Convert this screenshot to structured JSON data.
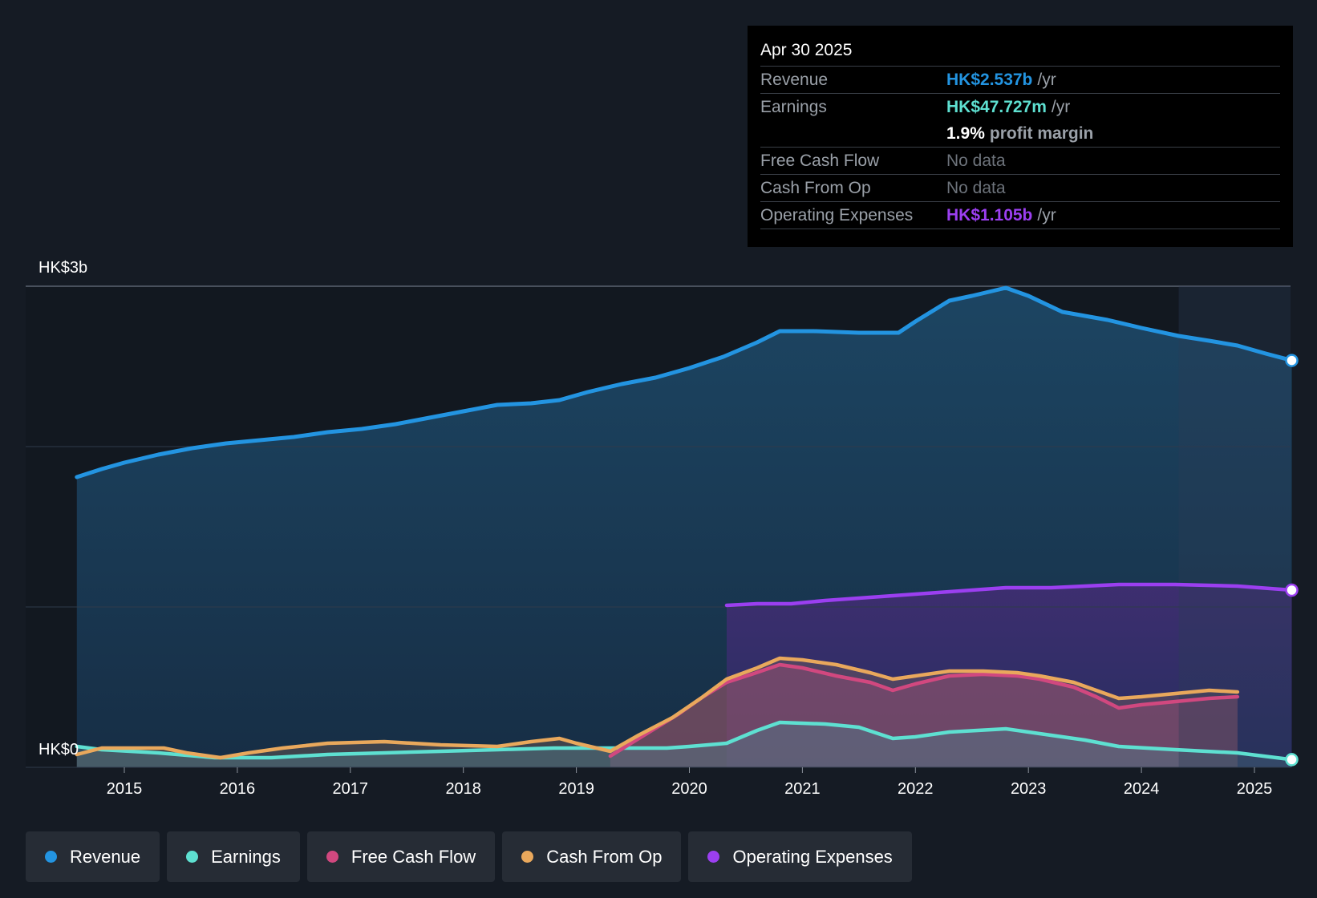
{
  "colors": {
    "revenue": "#2394e1",
    "earnings": "#5ee0d1",
    "free_cash_flow": "#d1487f",
    "cash_from_op": "#e9a85c",
    "operating_expenses": "#9b3ff0",
    "background": "#151b24"
  },
  "tooltip": {
    "date": "Apr 30 2025",
    "rows": {
      "revenue": {
        "label": "Revenue",
        "value": "HK$2.537b",
        "unit": "/yr"
      },
      "earnings": {
        "label": "Earnings",
        "value": "HK$47.727m",
        "unit": "/yr"
      },
      "margin": {
        "value": "1.9%",
        "unit": "profit margin"
      },
      "fcf": {
        "label": "Free Cash Flow",
        "value": "No data"
      },
      "cfo": {
        "label": "Cash From Op",
        "value": "No data"
      },
      "opex": {
        "label": "Operating Expenses",
        "value": "HK$1.105b",
        "unit": "/yr"
      }
    }
  },
  "legend": [
    {
      "label": "Revenue",
      "color": "#2394e1"
    },
    {
      "label": "Earnings",
      "color": "#5ee0d1"
    },
    {
      "label": "Free Cash Flow",
      "color": "#d1487f"
    },
    {
      "label": "Cash From Op",
      "color": "#e9a85c"
    },
    {
      "label": "Operating Expenses",
      "color": "#9b3ff0"
    }
  ],
  "chart_data": {
    "type": "line",
    "ylim": [
      0,
      3.0
    ],
    "xlim": [
      2014.0,
      2025.3
    ],
    "y_tick_labels": [
      {
        "value": 3.0,
        "label": "HK$3b"
      },
      {
        "value": 0,
        "label": "HK$0"
      }
    ],
    "x_ticks": [
      2015,
      2016,
      2017,
      2018,
      2019,
      2020,
      2021,
      2022,
      2023,
      2024,
      2025
    ],
    "grid": true,
    "forecast_shade_from": 2024.33,
    "series": [
      {
        "name": "Revenue",
        "key": "revenue",
        "points": [
          [
            2014.58,
            1.81
          ],
          [
            2014.8,
            1.86
          ],
          [
            2015.0,
            1.9
          ],
          [
            2015.3,
            1.95
          ],
          [
            2015.6,
            1.99
          ],
          [
            2015.9,
            2.02
          ],
          [
            2016.2,
            2.04
          ],
          [
            2016.5,
            2.06
          ],
          [
            2016.8,
            2.09
          ],
          [
            2017.1,
            2.11
          ],
          [
            2017.4,
            2.14
          ],
          [
            2017.7,
            2.18
          ],
          [
            2018.0,
            2.22
          ],
          [
            2018.3,
            2.26
          ],
          [
            2018.6,
            2.27
          ],
          [
            2018.85,
            2.29
          ],
          [
            2019.1,
            2.34
          ],
          [
            2019.4,
            2.39
          ],
          [
            2019.7,
            2.43
          ],
          [
            2020.0,
            2.49
          ],
          [
            2020.3,
            2.56
          ],
          [
            2020.6,
            2.65
          ],
          [
            2020.8,
            2.72
          ],
          [
            2021.1,
            2.72
          ],
          [
            2021.5,
            2.71
          ],
          [
            2021.85,
            2.71
          ],
          [
            2022.0,
            2.78
          ],
          [
            2022.3,
            2.91
          ],
          [
            2022.5,
            2.94
          ],
          [
            2022.8,
            2.99
          ],
          [
            2023.0,
            2.94
          ],
          [
            2023.3,
            2.84
          ],
          [
            2023.7,
            2.79
          ],
          [
            2024.0,
            2.74
          ],
          [
            2024.33,
            2.69
          ],
          [
            2024.6,
            2.66
          ],
          [
            2024.85,
            2.63
          ],
          [
            2025.1,
            2.58
          ],
          [
            2025.33,
            2.537
          ]
        ]
      },
      {
        "name": "Earnings",
        "key": "earnings",
        "points": [
          [
            2014.58,
            0.13
          ],
          [
            2014.8,
            0.11
          ],
          [
            2015.3,
            0.09
          ],
          [
            2015.8,
            0.06
          ],
          [
            2016.3,
            0.06
          ],
          [
            2016.8,
            0.08
          ],
          [
            2017.3,
            0.09
          ],
          [
            2017.8,
            0.1
          ],
          [
            2018.3,
            0.11
          ],
          [
            2018.8,
            0.12
          ],
          [
            2019.3,
            0.12
          ],
          [
            2019.8,
            0.12
          ],
          [
            2020.0,
            0.13
          ],
          [
            2020.33,
            0.15
          ],
          [
            2020.6,
            0.23
          ],
          [
            2020.8,
            0.28
          ],
          [
            2021.2,
            0.27
          ],
          [
            2021.5,
            0.25
          ],
          [
            2021.8,
            0.18
          ],
          [
            2022.0,
            0.19
          ],
          [
            2022.3,
            0.22
          ],
          [
            2022.8,
            0.24
          ],
          [
            2023.0,
            0.22
          ],
          [
            2023.5,
            0.17
          ],
          [
            2023.8,
            0.13
          ],
          [
            2024.3,
            0.11
          ],
          [
            2024.85,
            0.09
          ],
          [
            2025.33,
            0.048
          ]
        ]
      },
      {
        "name": "Free Cash Flow",
        "key": "free_cash_flow",
        "points": [
          [
            2019.3,
            0.07
          ],
          [
            2019.6,
            0.2
          ],
          [
            2019.9,
            0.33
          ],
          [
            2020.1,
            0.43
          ],
          [
            2020.33,
            0.53
          ],
          [
            2020.55,
            0.58
          ],
          [
            2020.8,
            0.64
          ],
          [
            2021.0,
            0.62
          ],
          [
            2021.3,
            0.57
          ],
          [
            2021.6,
            0.53
          ],
          [
            2021.8,
            0.48
          ],
          [
            2022.0,
            0.52
          ],
          [
            2022.3,
            0.57
          ],
          [
            2022.6,
            0.58
          ],
          [
            2022.9,
            0.57
          ],
          [
            2023.1,
            0.55
          ],
          [
            2023.4,
            0.5
          ],
          [
            2023.6,
            0.44
          ],
          [
            2023.8,
            0.37
          ],
          [
            2024.0,
            0.39
          ],
          [
            2024.3,
            0.41
          ],
          [
            2024.6,
            0.43
          ],
          [
            2024.85,
            0.44
          ]
        ]
      },
      {
        "name": "Cash From Op",
        "key": "cash_from_op",
        "points": [
          [
            2014.58,
            0.08
          ],
          [
            2014.8,
            0.12
          ],
          [
            2015.35,
            0.12
          ],
          [
            2015.55,
            0.09
          ],
          [
            2015.85,
            0.06
          ],
          [
            2016.1,
            0.09
          ],
          [
            2016.4,
            0.12
          ],
          [
            2016.8,
            0.15
          ],
          [
            2017.3,
            0.16
          ],
          [
            2017.8,
            0.14
          ],
          [
            2018.3,
            0.13
          ],
          [
            2018.6,
            0.16
          ],
          [
            2018.85,
            0.18
          ],
          [
            2019.0,
            0.15
          ],
          [
            2019.3,
            0.1
          ],
          [
            2019.55,
            0.2
          ],
          [
            2019.85,
            0.31
          ],
          [
            2020.1,
            0.43
          ],
          [
            2020.33,
            0.55
          ],
          [
            2020.6,
            0.62
          ],
          [
            2020.8,
            0.68
          ],
          [
            2021.0,
            0.67
          ],
          [
            2021.3,
            0.64
          ],
          [
            2021.6,
            0.59
          ],
          [
            2021.8,
            0.55
          ],
          [
            2022.0,
            0.57
          ],
          [
            2022.3,
            0.6
          ],
          [
            2022.6,
            0.6
          ],
          [
            2022.9,
            0.59
          ],
          [
            2023.1,
            0.57
          ],
          [
            2023.4,
            0.53
          ],
          [
            2023.6,
            0.48
          ],
          [
            2023.8,
            0.43
          ],
          [
            2024.0,
            0.44
          ],
          [
            2024.3,
            0.46
          ],
          [
            2024.6,
            0.48
          ],
          [
            2024.85,
            0.47
          ]
        ]
      },
      {
        "name": "Operating Expenses",
        "key": "operating_expenses",
        "points": [
          [
            2020.33,
            1.01
          ],
          [
            2020.6,
            1.02
          ],
          [
            2020.9,
            1.02
          ],
          [
            2021.2,
            1.04
          ],
          [
            2021.6,
            1.06
          ],
          [
            2022.0,
            1.08
          ],
          [
            2022.4,
            1.1
          ],
          [
            2022.8,
            1.12
          ],
          [
            2023.2,
            1.12
          ],
          [
            2023.5,
            1.13
          ],
          [
            2023.8,
            1.14
          ],
          [
            2024.3,
            1.14
          ],
          [
            2024.85,
            1.13
          ],
          [
            2025.33,
            1.105
          ]
        ]
      }
    ]
  }
}
